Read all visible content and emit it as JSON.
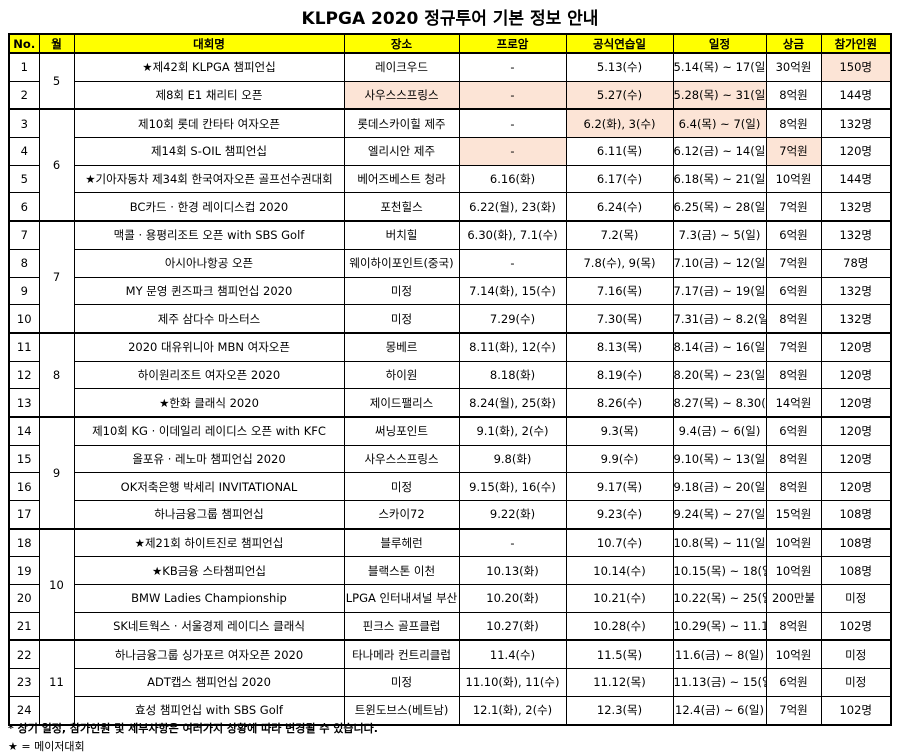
{
  "title": "KLPGA 2020 정규투어 기본 정보 안내",
  "columns": [
    "No.",
    "월",
    "대회명",
    "장소",
    "프로암",
    "공식연습일",
    "일정",
    "상금",
    "참가인원"
  ],
  "groups": [
    {
      "month": "5",
      "rows": [
        [
          "1",
          "★제42회 KLPGA 챔피언십",
          "레이크우드",
          "-",
          "5.13(수)",
          "5.14(목) ~ 17(일)",
          "30억원",
          "150명"
        ],
        [
          "2",
          "제8회 E1 채리티 오픈",
          "사우스스프링스",
          "-",
          "5.27(수)",
          "5.28(목) ~ 31(일)",
          "8억원",
          "144명"
        ]
      ]
    },
    {
      "month": "6",
      "rows": [
        [
          "3",
          "제10회 롯데 칸타타 여자오픈",
          "롯데스카이힐 제주",
          "-",
          "6.2(화), 3(수)",
          "6.4(목) ~ 7(일)",
          "8억원",
          "132명"
        ],
        [
          "4",
          "제14회 S-OIL 챔피언십",
          "엘리시안 제주",
          "-",
          "6.11(목)",
          "6.12(금) ~ 14(일)",
          "7억원",
          "120명"
        ],
        [
          "5",
          "★기아자동차 제34회 한국여자오픈 골프선수권대회",
          "베어즈베스트 청라",
          "6.16(화)",
          "6.17(수)",
          "6.18(목) ~ 21(일)",
          "10억원",
          "144명"
        ],
        [
          "6",
          "BC카드 · 한경 레이디스컵 2020",
          "포천힐스",
          "6.22(월), 23(화)",
          "6.24(수)",
          "6.25(목) ~ 28(일)",
          "7억원",
          "132명"
        ]
      ]
    },
    {
      "month": "7",
      "rows": [
        [
          "7",
          "맥콜 · 용평리조트 오픈 with SBS Golf",
          "버치힐",
          "6.30(화), 7.1(수)",
          "7.2(목)",
          "7.3(금) ~ 5(일)",
          "6억원",
          "132명"
        ],
        [
          "8",
          "아시아나항공 오픈",
          "웨이하이포인트(중국)",
          "-",
          "7.8(수), 9(목)",
          "7.10(금) ~ 12(일)",
          "7억원",
          "78명"
        ],
        [
          "9",
          "MY 문영 퀸즈파크 챔피언십 2020",
          "미정",
          "7.14(화), 15(수)",
          "7.16(목)",
          "7.17(금) ~ 19(일)",
          "6억원",
          "132명"
        ],
        [
          "10",
          "제주 삼다수 마스터스",
          "미정",
          "7.29(수)",
          "7.30(목)",
          "7.31(금) ~ 8.2(일)",
          "8억원",
          "132명"
        ]
      ]
    },
    {
      "month": "8",
      "rows": [
        [
          "11",
          "2020 대유위니아 MBN 여자오픈",
          "몽베르",
          "8.11(화), 12(수)",
          "8.13(목)",
          "8.14(금) ~ 16(일)",
          "7억원",
          "120명"
        ],
        [
          "12",
          "하이원리조트 여자오픈 2020",
          "하이원",
          "8.18(화)",
          "8.19(수)",
          "8.20(목) ~ 23(일)",
          "8억원",
          "120명"
        ],
        [
          "13",
          "★한화 클래식 2020",
          "제이드팰리스",
          "8.24(월), 25(화)",
          "8.26(수)",
          "8.27(목) ~ 8.30(일)",
          "14억원",
          "120명"
        ]
      ]
    },
    {
      "month": "9",
      "rows": [
        [
          "14",
          "제10회 KG · 이데일리 레이디스 오픈 with KFC",
          "써닝포인트",
          "9.1(화), 2(수)",
          "9.3(목)",
          "9.4(금) ~ 6(일)",
          "6억원",
          "120명"
        ],
        [
          "15",
          "올포유 · 레노마 챔피언십 2020",
          "사우스스프링스",
          "9.8(화)",
          "9.9(수)",
          "9.10(목) ~ 13(일)",
          "8억원",
          "120명"
        ],
        [
          "16",
          "OK저축은행 박세리 INVITATIONAL",
          "미정",
          "9.15(화), 16(수)",
          "9.17(목)",
          "9.18(금) ~ 20(일)",
          "8억원",
          "120명"
        ],
        [
          "17",
          "하나금융그룹 챔피언십",
          "스카이72",
          "9.22(화)",
          "9.23(수)",
          "9.24(목) ~ 27(일)",
          "15억원",
          "108명"
        ]
      ]
    },
    {
      "month": "10",
      "rows": [
        [
          "18",
          "★제21회 하이트진로 챔피언십",
          "블루헤런",
          "-",
          "10.7(수)",
          "10.8(목) ~ 11(일)",
          "10억원",
          "108명"
        ],
        [
          "19",
          "★KB금융 스타챔피언십",
          "블랙스톤 이천",
          "10.13(화)",
          "10.14(수)",
          "10.15(목) ~ 18(일)",
          "10억원",
          "108명"
        ],
        [
          "20",
          "BMW Ladies Championship",
          "LPGA 인터내셔널 부산",
          "10.20(화)",
          "10.21(수)",
          "10.22(목) ~ 25(일)",
          "200만불",
          "미정"
        ],
        [
          "21",
          "SK네트웍스 · 서울경제 레이디스 클래식",
          "핀크스 골프클럽",
          "10.27(화)",
          "10.28(수)",
          "10.29(목) ~ 11.1(일)",
          "8억원",
          "102명"
        ]
      ]
    },
    {
      "month": "11",
      "rows": [
        [
          "22",
          "하나금융그룹 싱가포르 여자오픈 2020",
          "타나메라 컨트리클럽",
          "11.4(수)",
          "11.5(목)",
          "11.6(금) ~ 8(일)",
          "10억원",
          "미정"
        ],
        [
          "23",
          "ADT캡스 챔피언십 2020",
          "미정",
          "11.10(화), 11(수)",
          "11.12(목)",
          "11.13(금) ~ 15(일)",
          "6억원",
          "미정"
        ],
        [
          "24",
          "효성 챔피언십 with SBS Golf",
          "트윈도브스(베트남)",
          "12.1(화), 2(수)",
          "12.3(목)",
          "12.4(금) ~ 6(일)",
          "7억원",
          "102명"
        ]
      ]
    }
  ],
  "notes": [
    "* 상기 일정, 참가인원 및 세부사항은 여러가지 상황에 따라 변경될 수 있습니다.",
    "★ = 메이저대회"
  ]
}
